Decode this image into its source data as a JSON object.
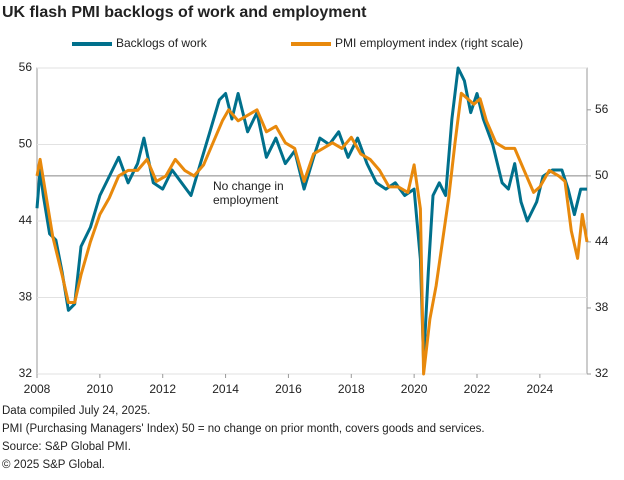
{
  "chart_data": {
    "type": "line",
    "title": "UK flash PMI backlogs of work and employment",
    "xlim": [
      2008,
      2025.5
    ],
    "xticks": [
      2008,
      2010,
      2012,
      2014,
      2016,
      2018,
      2020,
      2022,
      2024
    ],
    "ylim": [
      32,
      56
    ],
    "yticks": [
      32,
      38,
      44,
      50,
      56
    ],
    "y2lim": [
      32,
      59.8
    ],
    "y2ticks": [
      32,
      38,
      44,
      50,
      56
    ],
    "grid": true,
    "reference_y2": 50,
    "annotation": "No change in employment",
    "series": [
      {
        "name": "Backlogs of work",
        "color": "#00708c",
        "x": [
          2008.0,
          2008.1,
          2008.2,
          2008.4,
          2008.6,
          2008.8,
          2009.0,
          2009.2,
          2009.4,
          2009.7,
          2010.0,
          2010.3,
          2010.6,
          2010.9,
          2011.2,
          2011.4,
          2011.7,
          2012.0,
          2012.3,
          2012.6,
          2012.9,
          2013.2,
          2013.5,
          2013.8,
          2014.0,
          2014.2,
          2014.4,
          2014.7,
          2015.0,
          2015.3,
          2015.6,
          2015.9,
          2016.2,
          2016.5,
          2016.8,
          2017.0,
          2017.3,
          2017.6,
          2017.9,
          2018.2,
          2018.5,
          2018.8,
          2019.1,
          2019.4,
          2019.7,
          2020.0,
          2020.2,
          2020.3,
          2020.45,
          2020.6,
          2020.8,
          2021.0,
          2021.2,
          2021.4,
          2021.6,
          2021.8,
          2022.0,
          2022.2,
          2022.5,
          2022.8,
          2023.0,
          2023.2,
          2023.4,
          2023.6,
          2023.9,
          2024.1,
          2024.4,
          2024.7,
          2024.9,
          2025.1,
          2025.3,
          2025.5
        ],
        "values": [
          45,
          48,
          46,
          43,
          42.5,
          40,
          37,
          37.5,
          42,
          43.5,
          46,
          47.5,
          49,
          47,
          48.5,
          50.5,
          47,
          46.5,
          48,
          47,
          46,
          48.5,
          51,
          53.5,
          54,
          52,
          54,
          51,
          52.5,
          49,
          50.5,
          48.5,
          49.5,
          46.5,
          49,
          50.5,
          50,
          51,
          49,
          50.5,
          48.5,
          47,
          46.5,
          47,
          46,
          46.5,
          41,
          33,
          40,
          46,
          47,
          46,
          52,
          56,
          55,
          52.5,
          54,
          52,
          50,
          47,
          46.5,
          48.5,
          45.5,
          44,
          45.5,
          47.5,
          48,
          48,
          46.5,
          44.5,
          46.5,
          46.5
        ]
      },
      {
        "name": "PMI employment index (right scale)",
        "color": "#e8890c",
        "axis": "y2",
        "x": [
          2008.0,
          2008.1,
          2008.3,
          2008.5,
          2008.8,
          2009.0,
          2009.2,
          2009.4,
          2009.7,
          2010.0,
          2010.3,
          2010.6,
          2010.9,
          2011.2,
          2011.5,
          2011.8,
          2012.1,
          2012.4,
          2012.7,
          2013.0,
          2013.3,
          2013.6,
          2013.9,
          2014.1,
          2014.4,
          2014.7,
          2015.0,
          2015.3,
          2015.6,
          2015.9,
          2016.2,
          2016.5,
          2016.8,
          2017.1,
          2017.4,
          2017.7,
          2018.0,
          2018.3,
          2018.6,
          2018.9,
          2019.2,
          2019.5,
          2019.8,
          2020.0,
          2020.2,
          2020.3,
          2020.5,
          2020.7,
          2020.9,
          2021.1,
          2021.3,
          2021.5,
          2021.7,
          2021.9,
          2022.1,
          2022.3,
          2022.6,
          2022.9,
          2023.2,
          2023.5,
          2023.8,
          2024.0,
          2024.3,
          2024.6,
          2024.8,
          2025.0,
          2025.2,
          2025.35,
          2025.5
        ],
        "values": [
          50,
          51.5,
          48,
          44.5,
          41,
          38.5,
          38.5,
          41,
          44,
          46.5,
          48,
          50,
          50.5,
          50.5,
          51.5,
          49.5,
          50,
          51.5,
          50.5,
          50,
          51,
          53,
          55,
          56,
          55,
          55.5,
          56,
          54,
          54.5,
          53,
          52.5,
          49.5,
          52,
          52.5,
          53,
          52.5,
          53.5,
          52,
          51.5,
          50.5,
          49,
          49,
          48.5,
          51,
          47,
          32,
          37,
          40,
          44,
          48,
          53,
          57.5,
          57,
          56.5,
          57,
          55,
          53,
          52.5,
          52.5,
          50.5,
          48.5,
          49,
          50.5,
          50,
          49.5,
          45,
          42.5,
          46.5,
          44
        ]
      }
    ],
    "notes": [
      "Data compiled July 24, 2025.",
      "PMI (Purchasing Managers' Index) 50 = no change on prior month, covers goods and services.",
      "Source: S&P Global PMI.",
      "© 2025 S&P Global."
    ]
  }
}
